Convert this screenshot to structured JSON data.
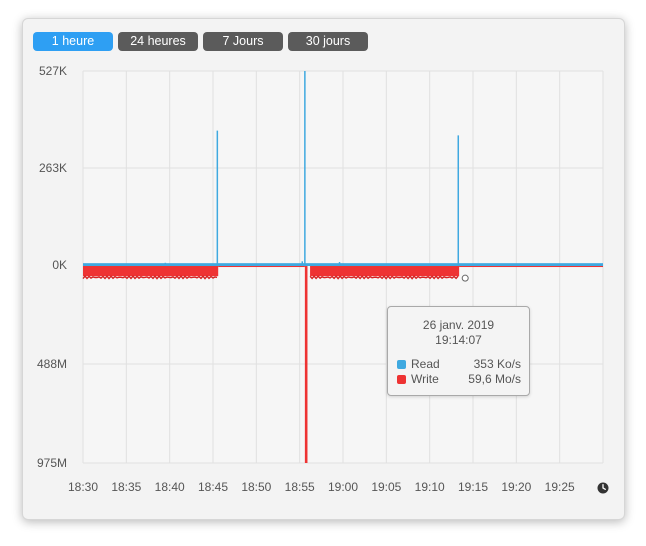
{
  "tabs": [
    {
      "label": "1 heure",
      "active": true
    },
    {
      "label": "24 heures",
      "active": false
    },
    {
      "label": "7 Jours",
      "active": false
    },
    {
      "label": "30 jours",
      "active": false
    }
  ],
  "colors": {
    "read": "#3fa9e0",
    "write": "#ee3333",
    "active_tab": "#2e9ff3",
    "tab": "#5b5b5b"
  },
  "chart_data": {
    "type": "area",
    "y_upper": {
      "label": "Read",
      "ticks": [
        "527K",
        "263K",
        "0K"
      ],
      "max": 527
    },
    "y_lower": {
      "label": "Write",
      "ticks": [
        "0K",
        "488M",
        "975M"
      ],
      "max": 975
    },
    "x_ticks": [
      "18:30",
      "18:35",
      "18:40",
      "18:45",
      "18:50",
      "18:55",
      "19:00",
      "19:05",
      "19:10",
      "19:15",
      "19:20",
      "19:25"
    ],
    "x_range_minutes": [
      0,
      60
    ],
    "grid": true,
    "series": [
      {
        "name": "Read",
        "color": "#3fa9e0",
        "baseline": 5,
        "spikes": [
          {
            "t": 9.5,
            "v": 6
          },
          {
            "t": 15.5,
            "v": 365
          },
          {
            "t": 25.3,
            "v": 10
          },
          {
            "t": 25.6,
            "v": 527
          },
          {
            "t": 29.6,
            "v": 8
          },
          {
            "t": 43.3,
            "v": 352
          }
        ]
      },
      {
        "name": "Write",
        "color": "#ee3333",
        "segments": [
          {
            "t0": 0,
            "t1": 15.6,
            "level": 55
          },
          {
            "t0": 15.6,
            "t1": 25.6,
            "level": 10
          },
          {
            "t0": 25.6,
            "t1": 25.9,
            "level": 975
          },
          {
            "t0": 26.2,
            "t1": 43.4,
            "level": 55
          },
          {
            "t0": 43.4,
            "t1": 60,
            "level": 10
          }
        ]
      }
    ]
  },
  "tooltip": {
    "date": "26 janv. 2019",
    "time": "19:14:07",
    "rows": [
      {
        "name": "Read",
        "value": "353 Ko/s",
        "color": "#3fa9e0"
      },
      {
        "name": "Write",
        "value": "59,6 Mo/s",
        "color": "#ee3333"
      }
    ]
  },
  "icons": {
    "clock": "clock-icon"
  }
}
